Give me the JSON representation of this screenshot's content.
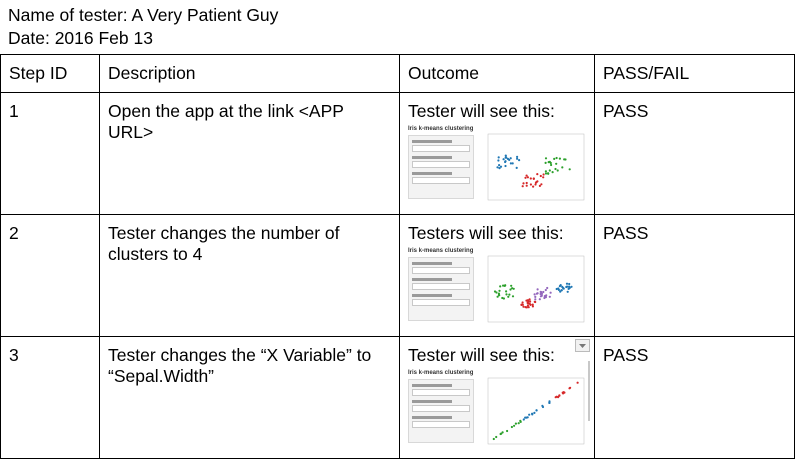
{
  "tester_line": "Name of tester: A Very Patient Guy",
  "date_line": "Date: 2016 Feb 13",
  "table": {
    "headers": [
      "Step ID",
      "Description",
      "Outcome",
      "PASS/FAIL"
    ],
    "rows": [
      {
        "id": "1",
        "description": "Open the app at the link <APP URL>",
        "outcome_text": "Tester will see this:",
        "result": "PASS"
      },
      {
        "id": "2",
        "description": "Tester changes the number of clusters to 4",
        "outcome_text": "Testers will see this:",
        "result": "PASS"
      },
      {
        "id": "3",
        "description": "Tester changes the “X Variable” to “Sepal.Width”",
        "outcome_text": "Tester will see this:",
        "result": "PASS"
      }
    ]
  },
  "screenshot_title": "Iris k-means clustering",
  "cluster_colors": [
    "#1f77b4",
    "#d62728",
    "#2ca02c",
    "#9467bd"
  ]
}
